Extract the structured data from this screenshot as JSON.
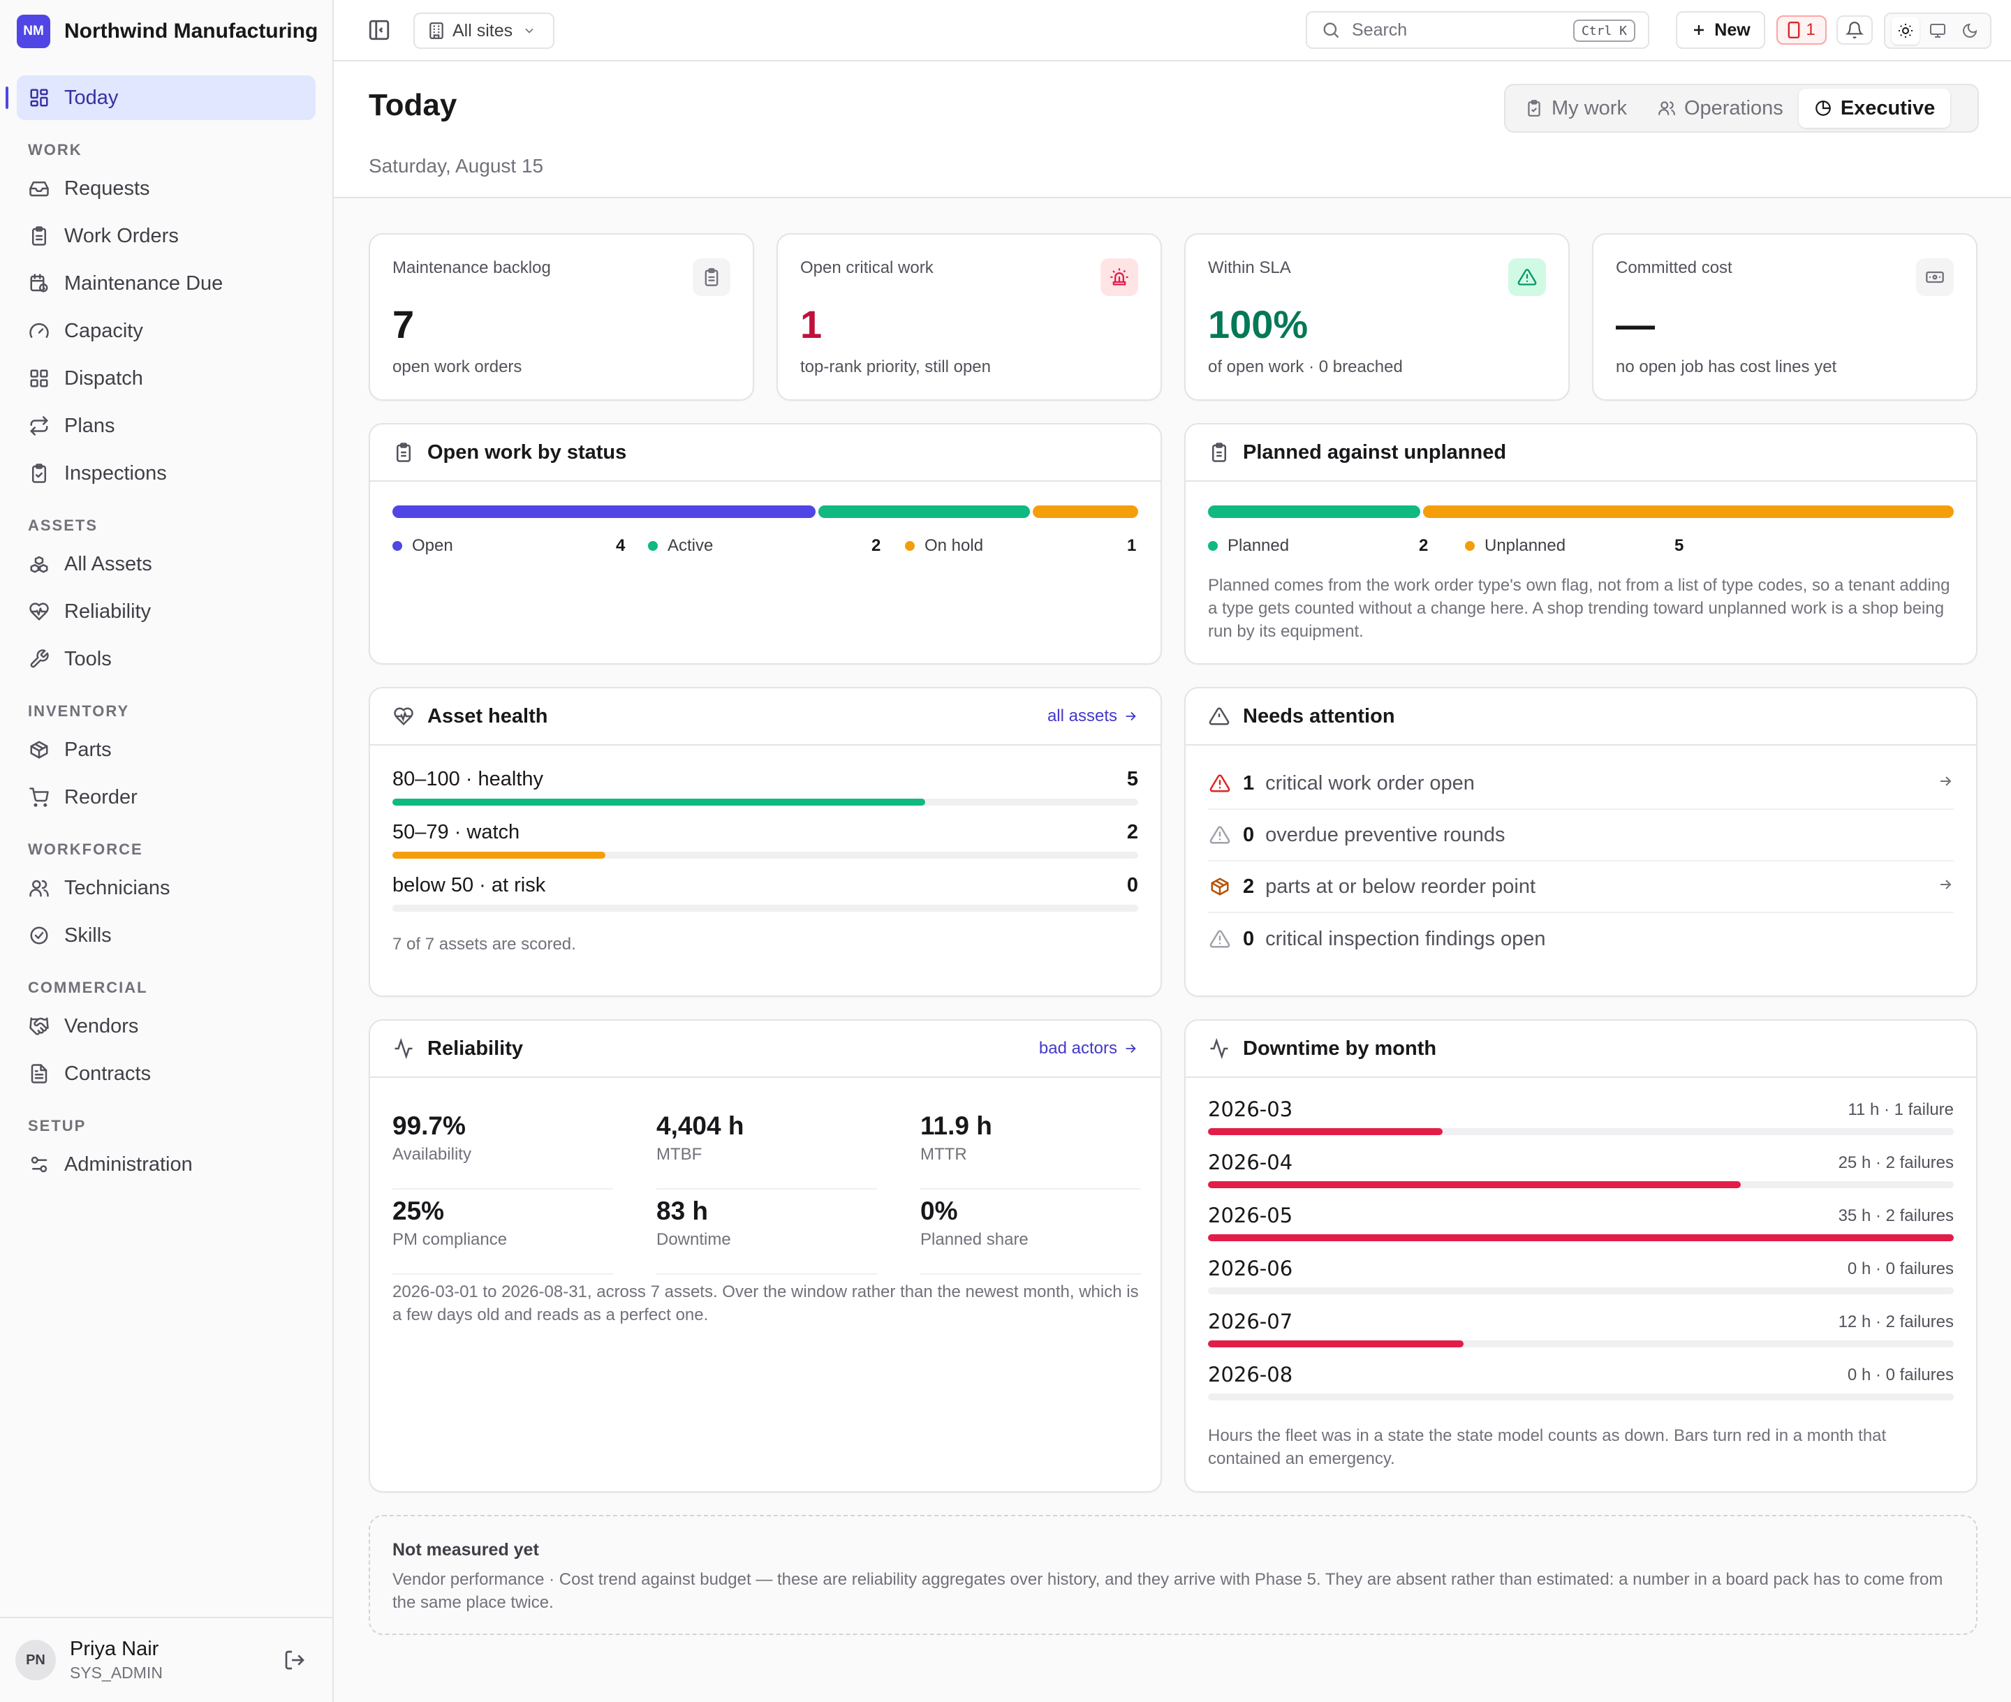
{
  "brand": {
    "initials": "NM",
    "name": "Northwind Manufacturing"
  },
  "sidebar": {
    "today": "Today",
    "sections": [
      {
        "title": "WORK",
        "items": [
          "Requests",
          "Work Orders",
          "Maintenance Due",
          "Capacity",
          "Dispatch",
          "Plans",
          "Inspections"
        ]
      },
      {
        "title": "ASSETS",
        "items": [
          "All Assets",
          "Reliability",
          "Tools"
        ]
      },
      {
        "title": "INVENTORY",
        "items": [
          "Parts",
          "Reorder"
        ]
      },
      {
        "title": "WORKFORCE",
        "items": [
          "Technicians",
          "Skills"
        ]
      },
      {
        "title": "COMMERCIAL",
        "items": [
          "Vendors",
          "Contracts"
        ]
      },
      {
        "title": "SETUP",
        "items": [
          "Administration"
        ]
      }
    ]
  },
  "user": {
    "initials": "PN",
    "name": "Priya Nair",
    "role": "SYS_ADMIN"
  },
  "topbar": {
    "sites": "All sites",
    "search_placeholder": "Search",
    "search_shortcut": "Ctrl K",
    "new_label": "New",
    "critical_count": "1"
  },
  "page": {
    "title": "Today",
    "date": "Saturday, August 15",
    "views": [
      "My work",
      "Operations",
      "Executive"
    ],
    "active_view": "Executive"
  },
  "stats": [
    {
      "label": "Maintenance backlog",
      "value": "7",
      "sub": "open work orders",
      "icon": "clipboard-icon",
      "color": "#18181b"
    },
    {
      "label": "Open critical work",
      "value": "1",
      "sub": "top-rank priority, still open",
      "icon": "siren-icon",
      "color": "#be123c"
    },
    {
      "label": "Within SLA",
      "value": "100%",
      "sub": "of open work · 0 breached",
      "icon": "warning-icon",
      "color": "#047857"
    },
    {
      "label": "Committed cost",
      "value": "—",
      "sub": "no open job has cost lines yet",
      "icon": "banknote-icon",
      "color": "#18181b"
    }
  ],
  "status_card": {
    "title": "Open work by status",
    "items": [
      {
        "label": "Open",
        "value": 4,
        "color": "#4f46e5"
      },
      {
        "label": "Active",
        "value": 2,
        "color": "#10b981"
      },
      {
        "label": "On hold",
        "value": 1,
        "color": "#f59e0b"
      }
    ]
  },
  "planned_card": {
    "title": "Planned against unplanned",
    "items": [
      {
        "label": "Planned",
        "value": 2,
        "color": "#10b981"
      },
      {
        "label": "Unplanned",
        "value": 5,
        "color": "#f59e0b"
      }
    ],
    "note": "Planned comes from the work order type's own flag, not from a list of type codes, so a tenant adding a type gets counted without a change here. A shop trending toward unplanned work is a shop being run by its equipment."
  },
  "health_card": {
    "title": "Asset health",
    "link": "all assets",
    "total": 7,
    "rows": [
      {
        "label": "80–100 · healthy",
        "value": 5,
        "color": "#10b981"
      },
      {
        "label": "50–79 · watch",
        "value": 2,
        "color": "#f59e0b"
      },
      {
        "label": "below 50 · at risk",
        "value": 0,
        "color": "#e11d48"
      }
    ],
    "note": "7 of 7 assets are scored."
  },
  "attention_card": {
    "title": "Needs attention",
    "rows": [
      {
        "count": "1",
        "text": "critical work order open",
        "icon": "alert-triangle-icon",
        "tone": "#dc2626",
        "link": true
      },
      {
        "count": "0",
        "text": "overdue preventive rounds",
        "icon": "alert-triangle-icon",
        "tone": "#a1a1aa",
        "link": false
      },
      {
        "count": "2",
        "text": "parts at or below reorder point",
        "icon": "package-icon",
        "tone": "#b45309",
        "link": true
      },
      {
        "count": "0",
        "text": "critical inspection findings open",
        "icon": "alert-triangle-icon",
        "tone": "#a1a1aa",
        "link": false
      }
    ]
  },
  "reliability_card": {
    "title": "Reliability",
    "link": "bad actors",
    "metrics": [
      {
        "value": "99.7%",
        "label": "Availability"
      },
      {
        "value": "4,404 h",
        "label": "MTBF"
      },
      {
        "value": "11.9 h",
        "label": "MTTR"
      },
      {
        "value": "25%",
        "label": "PM compliance"
      },
      {
        "value": "83 h",
        "label": "Downtime"
      },
      {
        "value": "0%",
        "label": "Planned share"
      }
    ],
    "note": "2026-03-01 to 2026-08-31, across 7 assets. Over the window rather than the newest month, which is a few days old and reads as a perfect one."
  },
  "downtime_card": {
    "title": "Downtime by month",
    "bar_color": "#e11d48",
    "max_hours": 35,
    "rows": [
      {
        "month": "2026-03",
        "hours": 11,
        "text": "11 h · 1 failure"
      },
      {
        "month": "2026-04",
        "hours": 25,
        "text": "25 h · 2 failures"
      },
      {
        "month": "2026-05",
        "hours": 35,
        "text": "35 h · 2 failures"
      },
      {
        "month": "2026-06",
        "hours": 0,
        "text": "0 h · 0 failures"
      },
      {
        "month": "2026-07",
        "hours": 12,
        "text": "12 h · 2 failures"
      },
      {
        "month": "2026-08",
        "hours": 0,
        "text": "0 h · 0 failures"
      }
    ],
    "note": "Hours the fleet was in a state the state model counts as down. Bars turn red in a month that contained an emergency."
  },
  "not_measured": {
    "title": "Not measured yet",
    "text": "Vendor performance · Cost trend against budget — these are reliability aggregates over history, and they arrive with Phase 5. They are absent rather than estimated: a number in a board pack has to come from the same place twice."
  }
}
